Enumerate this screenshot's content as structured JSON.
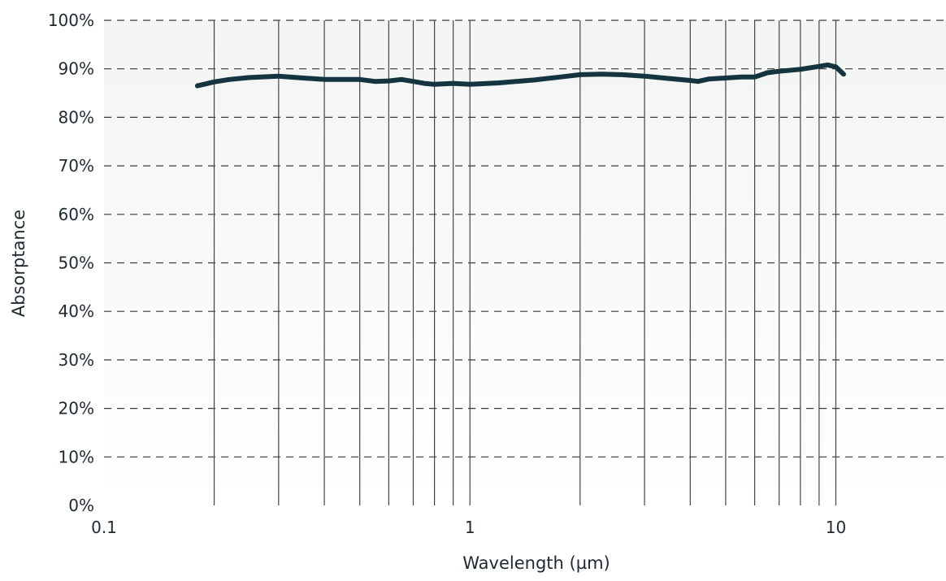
{
  "chart_data": {
    "type": "line",
    "xlabel": "Wavelength (µm)",
    "ylabel": "Absorptance",
    "x_scale": "log",
    "xlim": [
      0.1,
      20
    ],
    "ylim": [
      0,
      100
    ],
    "x_ticks": [
      {
        "value": 0.1,
        "label": "0.1"
      },
      {
        "value": 1,
        "label": "1"
      },
      {
        "value": 10,
        "label": "10"
      }
    ],
    "y_ticks": [
      {
        "value": 0,
        "label": "0%"
      },
      {
        "value": 10,
        "label": "10%"
      },
      {
        "value": 20,
        "label": "20%"
      },
      {
        "value": 30,
        "label": "30%"
      },
      {
        "value": 40,
        "label": "40%"
      },
      {
        "value": 50,
        "label": "50%"
      },
      {
        "value": 60,
        "label": "60%"
      },
      {
        "value": 70,
        "label": "70%"
      },
      {
        "value": 80,
        "label": "80%"
      },
      {
        "value": 90,
        "label": "90%"
      },
      {
        "value": 100,
        "label": "100%"
      }
    ],
    "x_minor_gridlines": [
      0.2,
      0.3,
      0.4,
      0.5,
      0.6,
      0.7,
      0.8,
      0.9,
      1,
      2,
      3,
      4,
      5,
      6,
      7,
      8,
      9,
      10
    ],
    "grid": {
      "x": "solid vertical",
      "y": "dashed horizontal"
    },
    "series": [
      {
        "x": [
          0.18,
          0.2,
          0.22,
          0.25,
          0.3,
          0.35,
          0.4,
          0.45,
          0.5,
          0.55,
          0.6,
          0.65,
          0.7,
          0.75,
          0.8,
          0.9,
          1.0,
          1.2,
          1.5,
          1.8,
          2.0,
          2.3,
          2.6,
          3.0,
          3.5,
          4.0,
          4.2,
          4.5,
          5.0,
          5.5,
          6.0,
          6.5,
          7.0,
          8.0,
          9.0,
          9.5,
          10.0,
          10.5
        ],
        "y": [
          86.5,
          87.3,
          87.8,
          88.2,
          88.5,
          88.1,
          87.8,
          87.8,
          87.8,
          87.4,
          87.5,
          87.8,
          87.4,
          87.0,
          86.8,
          87.0,
          86.8,
          87.1,
          87.7,
          88.4,
          88.8,
          88.9,
          88.8,
          88.5,
          88.0,
          87.6,
          87.4,
          87.9,
          88.1,
          88.3,
          88.3,
          89.2,
          89.5,
          89.9,
          90.5,
          90.8,
          90.4,
          88.9
        ]
      }
    ],
    "colors": {
      "line": "#143540",
      "grid": "#3a3a3a",
      "text": "#1e2a30"
    }
  }
}
